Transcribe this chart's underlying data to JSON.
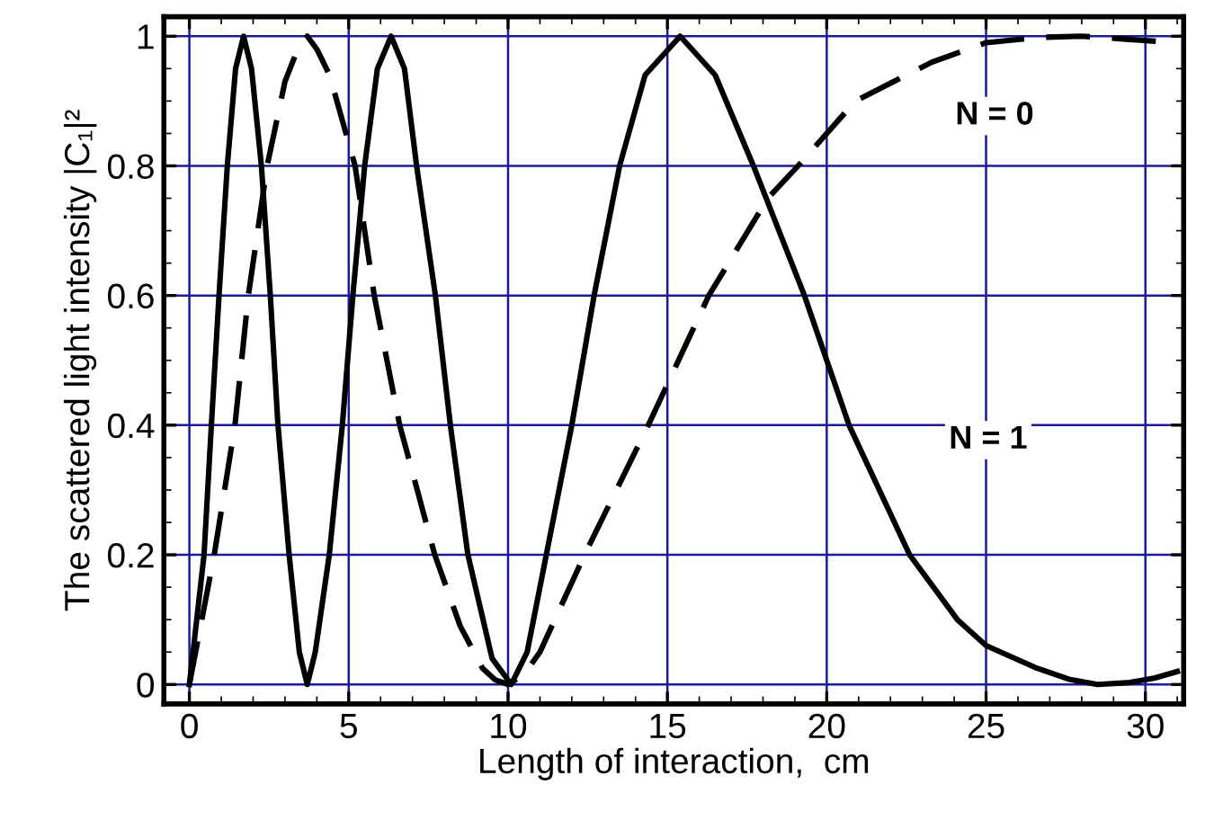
{
  "chart_data": {
    "type": "line",
    "xlabel": "Length of interaction,  cm",
    "ylabel": "The scattered light intensity |C₁|²",
    "xlim": [
      -0.8,
      31.2
    ],
    "ylim": [
      -0.03,
      1.03
    ],
    "xticks": [
      0,
      5,
      10,
      15,
      20,
      25,
      30
    ],
    "yticks": [
      0,
      0.2,
      0.4,
      0.6,
      0.8,
      1
    ],
    "grid": true,
    "legend": false,
    "marker": "none",
    "series": [
      {
        "name": "N = 0",
        "color": "#000000",
        "line_style": "dashed",
        "x": [
          0,
          0.78,
          1.43,
          1.85,
          2.44,
          3.0,
          3.4,
          3.7,
          4.0,
          4.4,
          5.2,
          5.8,
          6.6,
          7.7,
          8.5,
          9.2,
          9.6,
          10.0,
          10.5,
          11.0,
          12.4,
          14.4,
          16.3,
          18.15,
          19.1,
          20.9,
          23.3,
          25,
          26.6,
          28,
          29.5,
          31
        ],
        "values": [
          0,
          0.2,
          0.4,
          0.6,
          0.8,
          0.93,
          0.98,
          1,
          0.98,
          0.94,
          0.8,
          0.6,
          0.4,
          0.2,
          0.09,
          0.025,
          0.007,
          0,
          0.015,
          0.05,
          0.2,
          0.4,
          0.6,
          0.75,
          0.8,
          0.9,
          0.96,
          0.99,
          0.998,
          1.0,
          0.995,
          0.99
        ]
      },
      {
        "name": "N = 1",
        "color": "#000000",
        "line_style": "solid",
        "x": [
          0,
          0.46,
          0.69,
          0.93,
          1.19,
          1.45,
          1.7,
          1.95,
          2.26,
          2.54,
          2.78,
          3.13,
          3.45,
          3.7,
          3.95,
          4.39,
          4.8,
          5.13,
          5.5,
          5.9,
          6.33,
          6.75,
          7.13,
          7.72,
          8.19,
          8.74,
          9.5,
          10.1,
          10.6,
          11.2,
          12.0,
          12.7,
          13.5,
          14.3,
          15.4,
          16.5,
          17.7,
          19.3,
          20.7,
          22.6,
          24.1,
          25,
          26.6,
          27.6,
          28.5,
          29.5,
          30.3,
          31
        ],
        "values": [
          0,
          0.2,
          0.4,
          0.6,
          0.8,
          0.95,
          1,
          0.95,
          0.8,
          0.6,
          0.4,
          0.2,
          0.05,
          0,
          0.05,
          0.2,
          0.4,
          0.6,
          0.8,
          0.95,
          1,
          0.95,
          0.8,
          0.6,
          0.4,
          0.2,
          0.04,
          0,
          0.05,
          0.2,
          0.4,
          0.6,
          0.8,
          0.94,
          1,
          0.94,
          0.8,
          0.6,
          0.4,
          0.2,
          0.1,
          0.06,
          0.025,
          0.008,
          0,
          0.003,
          0.01,
          0.02
        ]
      }
    ]
  }
}
